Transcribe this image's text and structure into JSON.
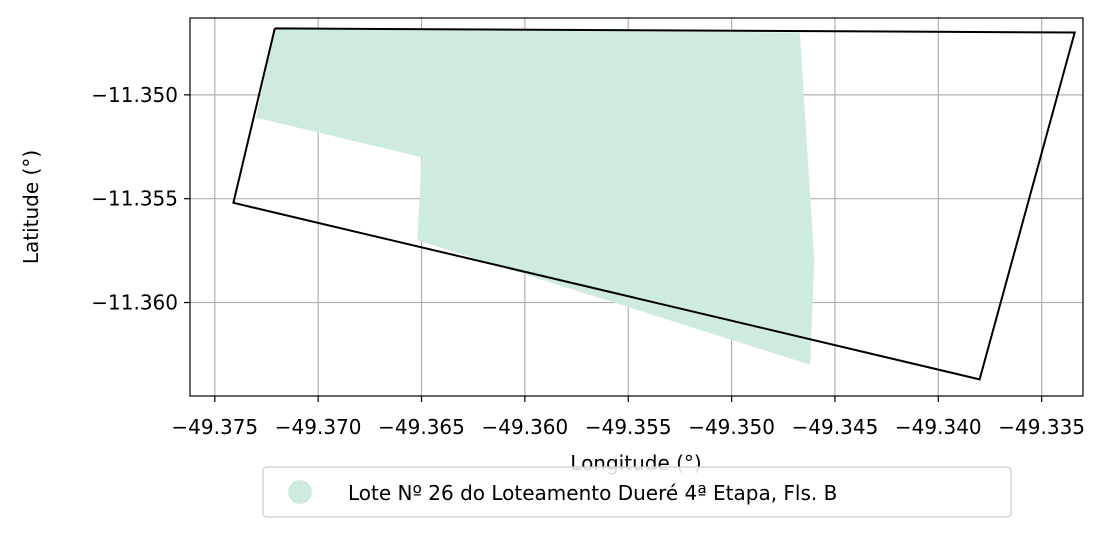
{
  "map": {
    "xlabel": "Longitude (°)",
    "ylabel": "Latitude (°)",
    "xlim": [
      -49.3762,
      -49.333
    ],
    "ylim": [
      -11.3645,
      -11.3463
    ],
    "x_ticks": [
      -49.375,
      -49.37,
      -49.365,
      -49.36,
      -49.355,
      -49.35,
      -49.345,
      -49.34,
      -49.335
    ],
    "x_tick_labels": [
      "−49.375",
      "−49.370",
      "−49.365",
      "−49.360",
      "−49.355",
      "−49.350",
      "−49.345",
      "−49.340",
      "−49.335"
    ],
    "y_ticks": [
      -11.35,
      -11.355,
      -11.36
    ],
    "y_tick_labels": [
      "−11.350",
      "−11.355",
      "−11.360"
    ],
    "grid": true,
    "legend": {
      "placement": "below-center",
      "entries": [
        {
          "label": "Lote Nº 26 do Loteamento Dueré 4ª Etapa, Fls. B",
          "color": "#cfebde",
          "marker": "circle"
        }
      ]
    },
    "fill_color": "#cfebde",
    "outline_color": "#000000",
    "shaded_area": [
      [
        -49.3721,
        -11.3468
      ],
      [
        -49.3467,
        -11.347
      ],
      [
        -49.346,
        -11.358
      ],
      [
        -49.3462,
        -11.363
      ],
      [
        -49.3652,
        -11.357
      ],
      [
        -49.365,
        -11.353
      ],
      [
        -49.373,
        -11.3511
      ]
    ],
    "lot_boundary": [
      [
        -49.3721,
        -11.3468
      ],
      [
        -49.3334,
        -11.347
      ],
      [
        -49.338,
        -11.3637
      ],
      [
        -49.3741,
        -11.3552
      ],
      [
        -49.3721,
        -11.3468
      ]
    ]
  }
}
